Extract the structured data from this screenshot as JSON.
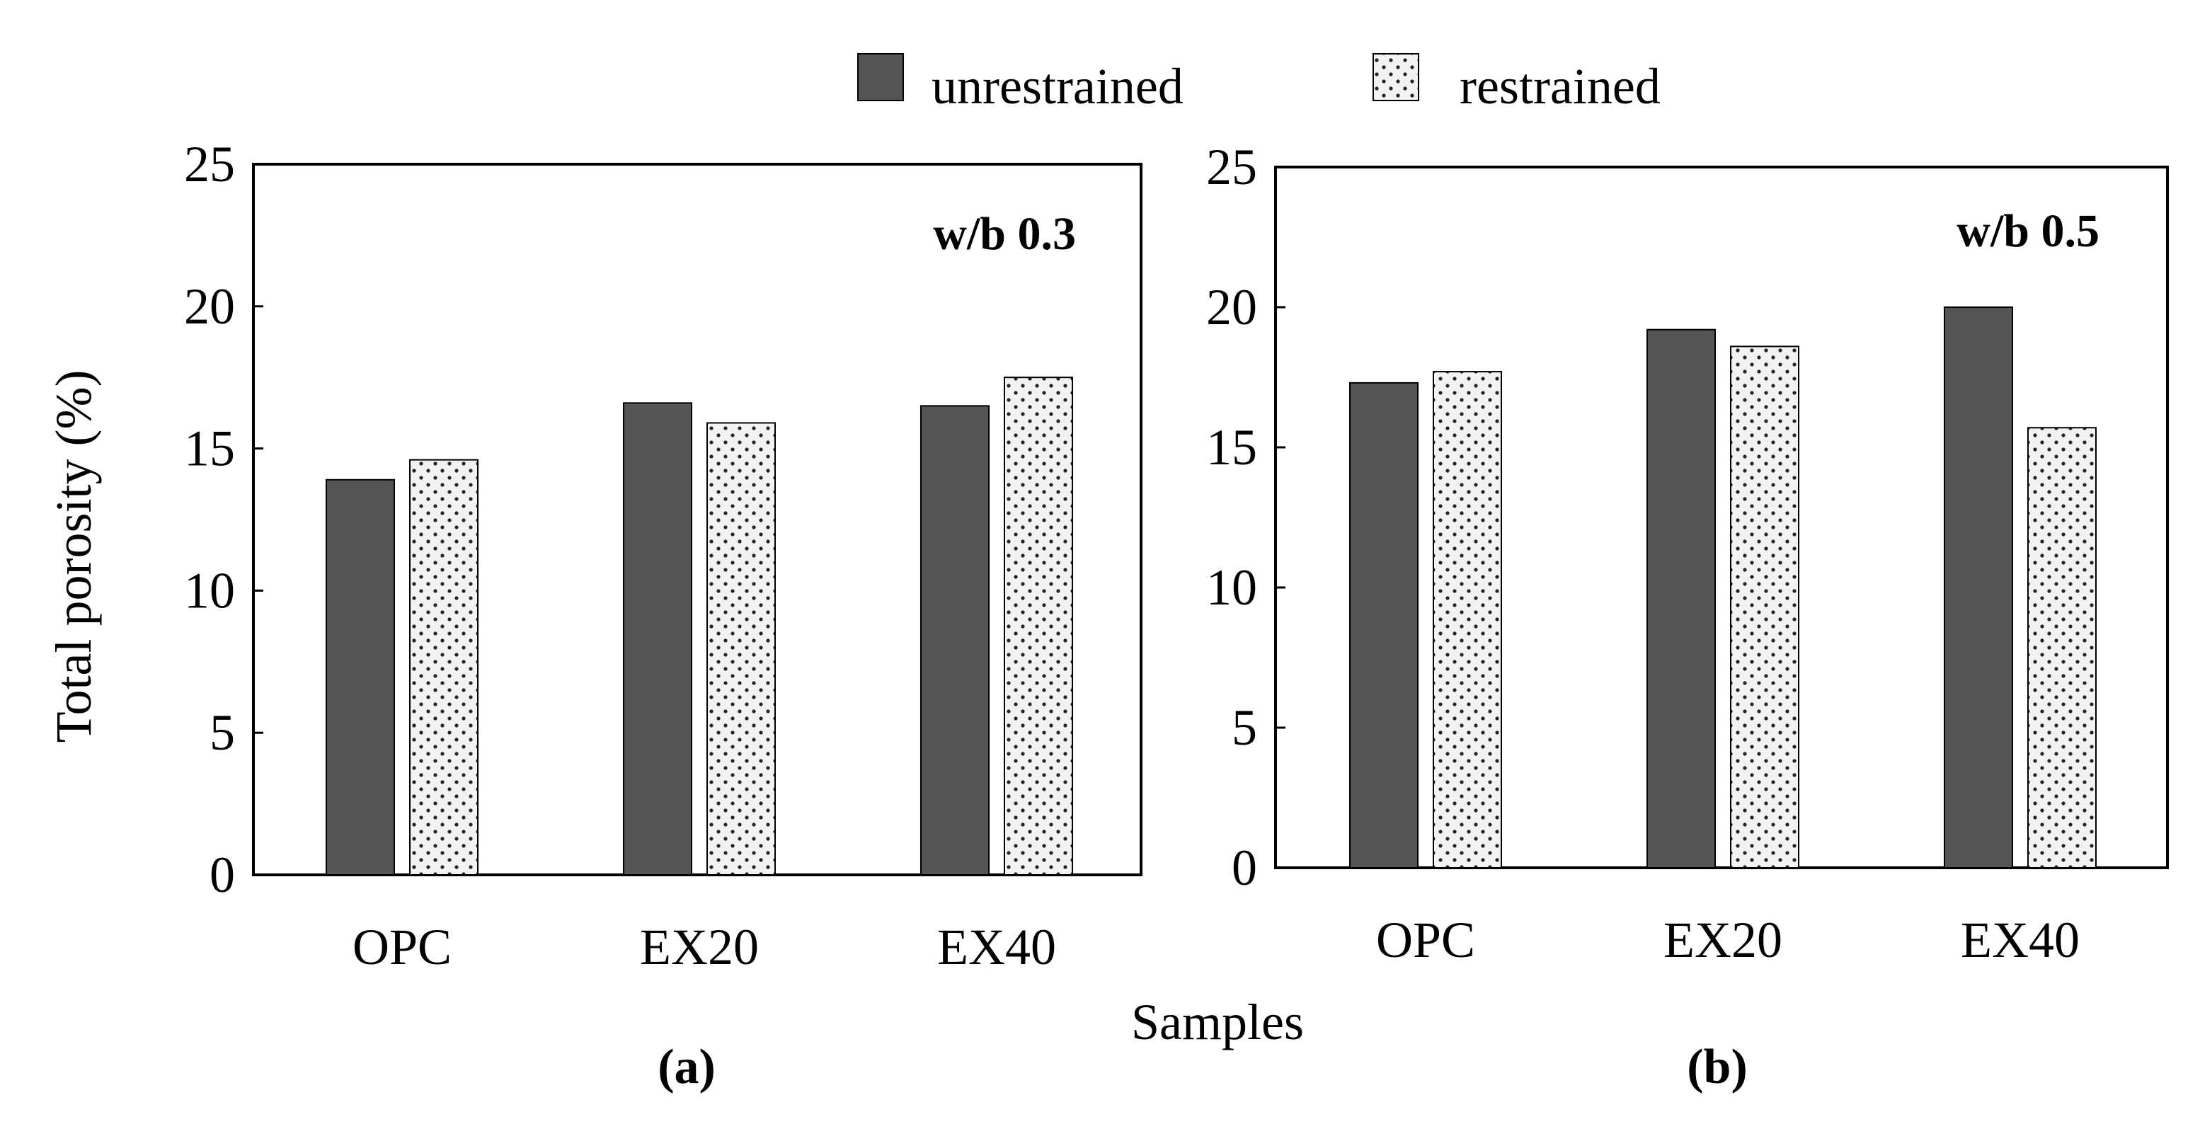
{
  "figure": {
    "colors": {
      "unrestrained": "#555555",
      "restrained_fill": "#f2f2f2",
      "restrained_dot": "#222222",
      "axis": "#000000"
    }
  },
  "legend": {
    "items": [
      {
        "label": "unrestrained",
        "pattern": "solid"
      },
      {
        "label": "restrained",
        "pattern": "dotted"
      }
    ],
    "placement": "top-center"
  },
  "shared": {
    "xlabel": "Samples",
    "ylabel": "Total porosity (%)"
  },
  "chart_data": [
    {
      "type": "bar",
      "panel_label": "(a)",
      "annotation": "w/b 0.3",
      "categories": [
        "OPC",
        "EX20",
        "EX40"
      ],
      "series": [
        {
          "name": "unrestrained",
          "values": [
            13.9,
            16.6,
            16.5
          ]
        },
        {
          "name": "restrained",
          "values": [
            14.6,
            15.9,
            17.5
          ]
        }
      ],
      "xlabel": "Samples",
      "ylabel": "Total porosity (%)",
      "ylim": [
        0,
        25
      ],
      "yticks": [
        0,
        5,
        10,
        15,
        20,
        25
      ],
      "grid": false
    },
    {
      "type": "bar",
      "panel_label": "(b)",
      "annotation": "w/b 0.5",
      "categories": [
        "OPC",
        "EX20",
        "EX40"
      ],
      "series": [
        {
          "name": "unrestrained",
          "values": [
            17.3,
            19.2,
            20.0
          ]
        },
        {
          "name": "restrained",
          "values": [
            17.7,
            18.6,
            15.7
          ]
        }
      ],
      "xlabel": "Samples",
      "ylabel": "",
      "ylim": [
        0,
        25
      ],
      "yticks": [
        0,
        5,
        10,
        15,
        20,
        25
      ],
      "grid": false
    }
  ]
}
